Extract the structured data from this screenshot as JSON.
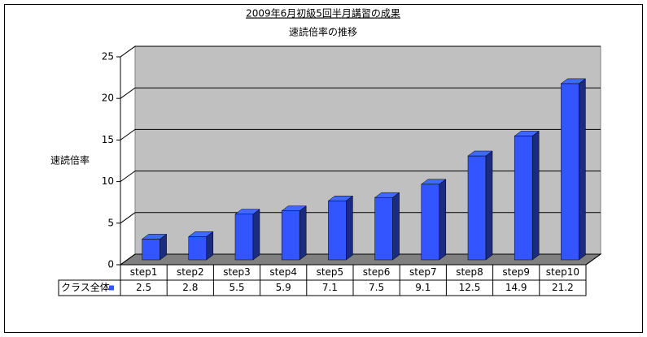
{
  "chart_data": {
    "type": "bar",
    "title": "2009年6月初級5回半月講習の成果",
    "subtitle": "速読倍率の推移",
    "y_label": "速読倍率",
    "categories": [
      "step1",
      "step2",
      "step3",
      "step4",
      "step5",
      "step6",
      "step7",
      "step8",
      "step9",
      "step10"
    ],
    "series": [
      {
        "name": "クラス全体",
        "color": "#3355ff",
        "values": [
          2.5,
          2.8,
          5.5,
          5.9,
          7.1,
          7.5,
          9.1,
          12.5,
          14.9,
          21.2
        ]
      }
    ],
    "ylim": [
      0,
      25
    ],
    "yticks": [
      0,
      5,
      10,
      15,
      20,
      25
    ],
    "grid": true
  }
}
